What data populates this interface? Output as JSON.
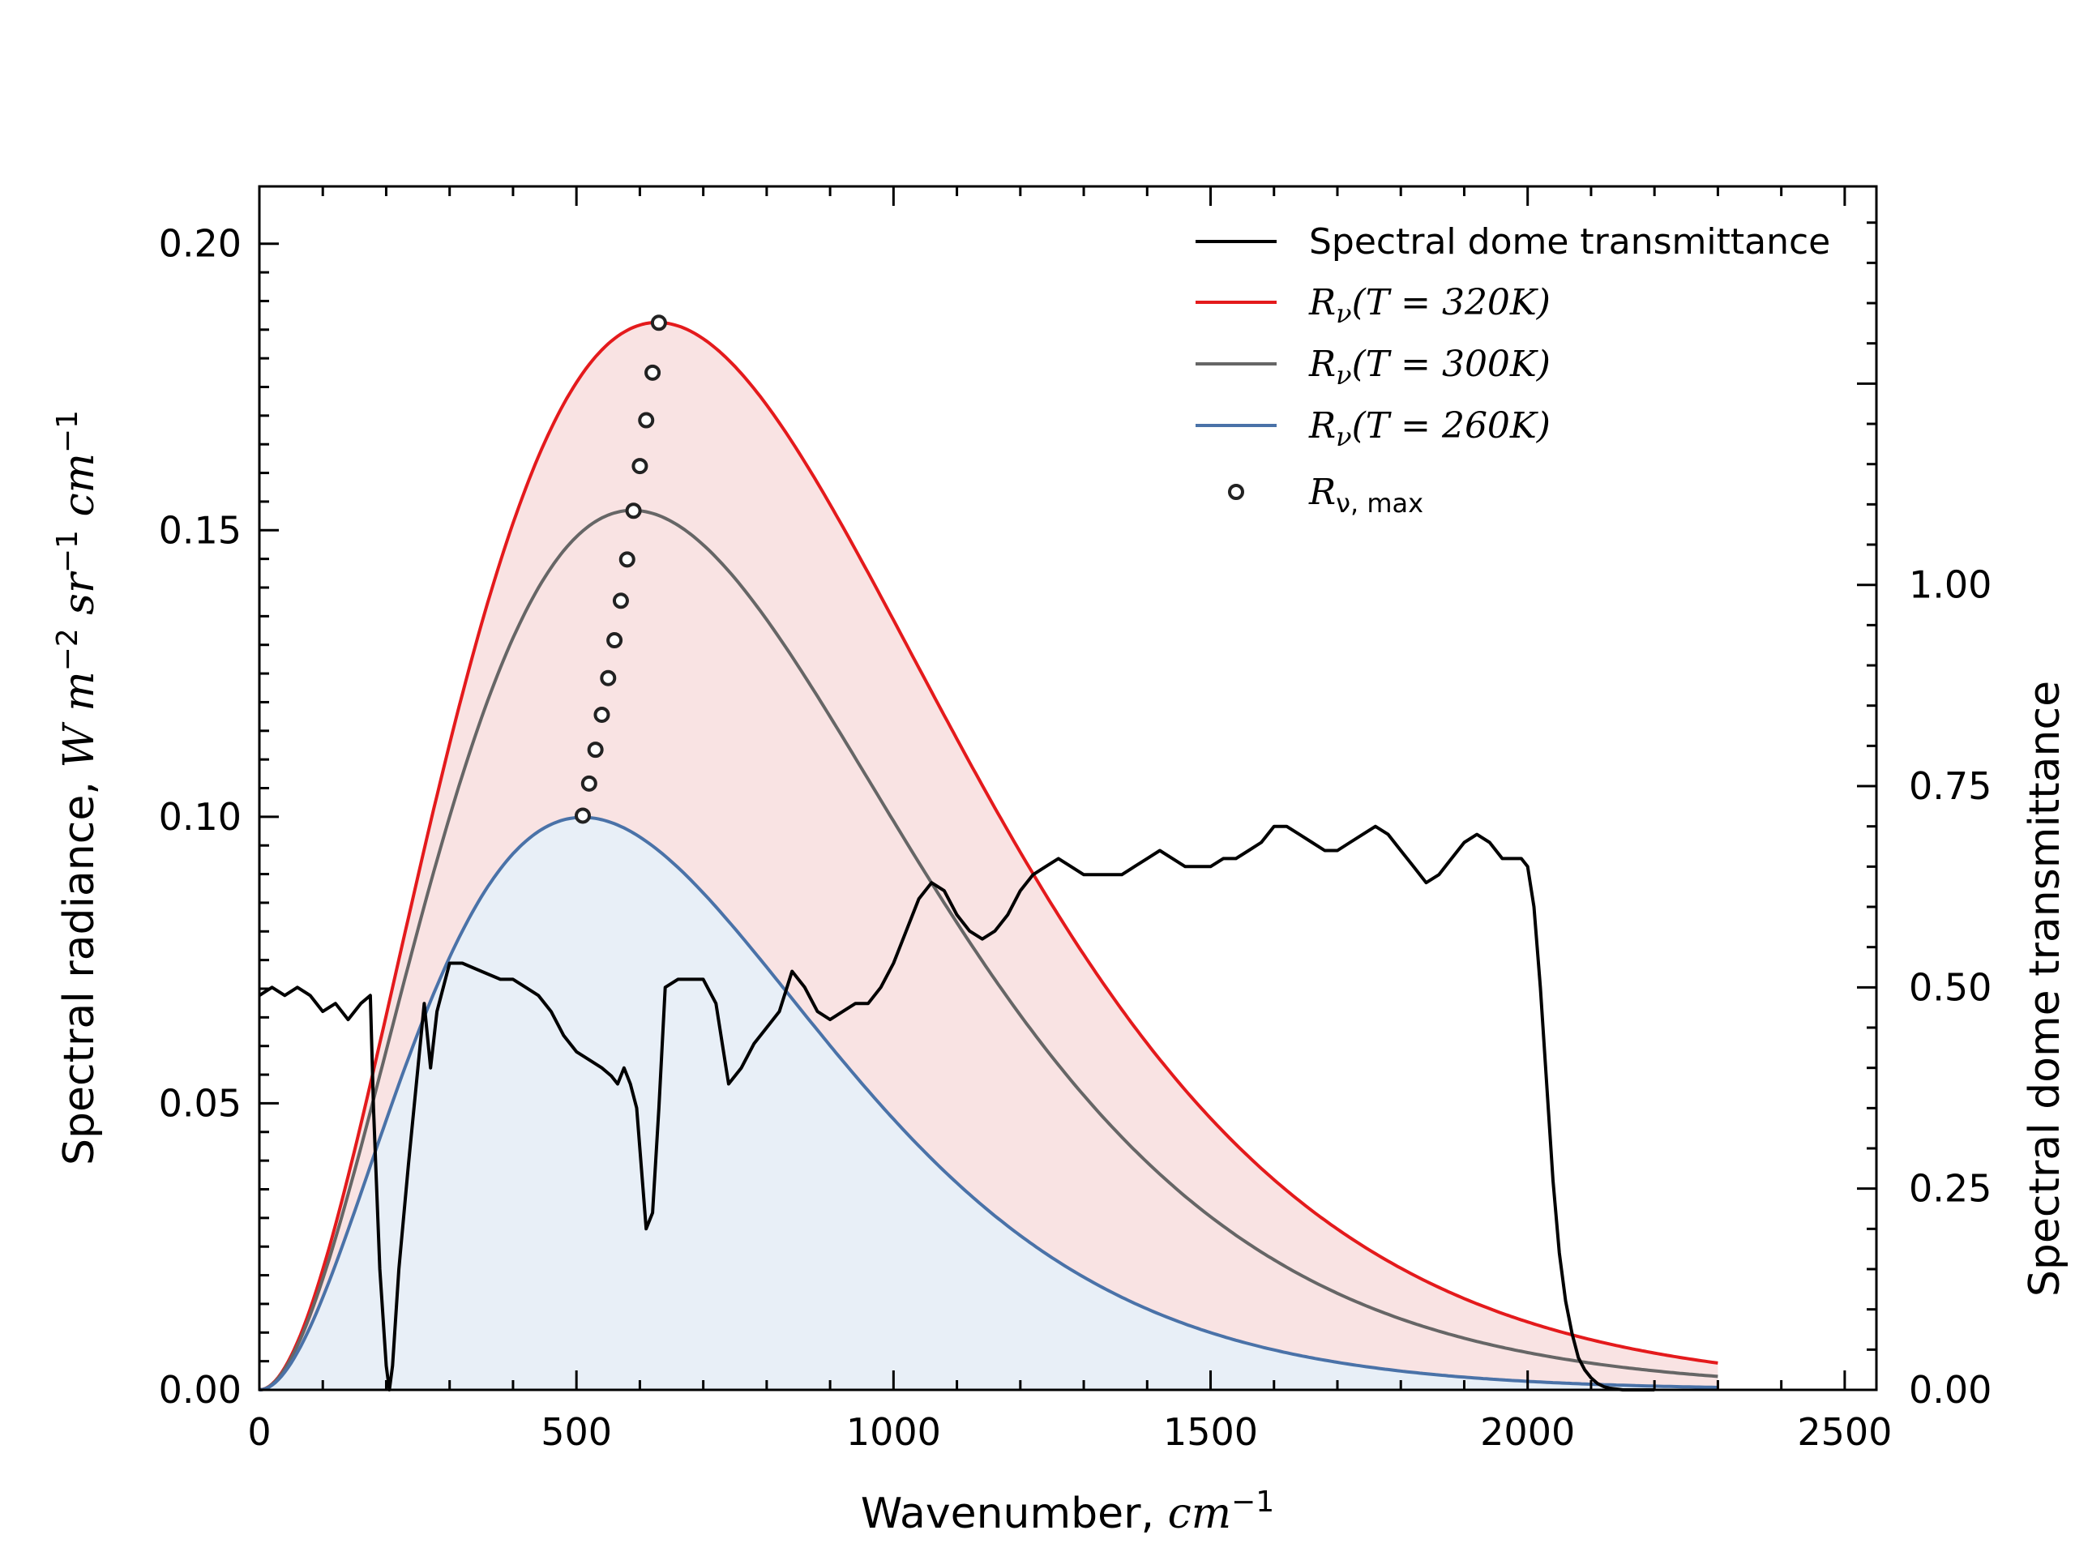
{
  "chart_data": {
    "type": "line",
    "xlabel": {
      "prefix": "Wavenumber, ",
      "unit": "cm",
      "exp": "−1"
    },
    "ylabel": {
      "prefix": "Spectral radiance, ",
      "W": "W",
      "m": "m",
      "m_exp": "−2",
      "sr": "sr",
      "sr_exp": "−1",
      "cm": "cm",
      "cm_exp": "−1"
    },
    "y2label": "Spectral dome transmittance",
    "xlim": [
      0,
      2550
    ],
    "ylim": [
      0,
      0.21
    ],
    "y2lim": [
      0,
      1.495
    ],
    "xticks": [
      0,
      500,
      1000,
      1500,
      2000,
      2500
    ],
    "xtick_labels": [
      "0",
      "500",
      "1000",
      "1500",
      "2000",
      "2500"
    ],
    "yticks": [
      0.0,
      0.05,
      0.1,
      0.15,
      0.2
    ],
    "ytick_labels": [
      "0.00",
      "0.05",
      "0.10",
      "0.15",
      "0.20"
    ],
    "y2ticks": [
      0.0,
      0.25,
      0.5,
      0.75,
      1.0
    ],
    "y2tick_labels": [
      "0.00",
      "0.25",
      "0.50",
      "0.75",
      "1.00"
    ],
    "legend_position": "top-right",
    "legend": [
      {
        "key": "transmittance",
        "label": "Spectral dome transmittance",
        "color": "#000000"
      },
      {
        "key": "r320",
        "label_prefix": "R",
        "label_sub": "ν",
        "label_rest": "(T = 320K)",
        "color": "#e41a1c"
      },
      {
        "key": "r300",
        "label_prefix": "R",
        "label_sub": "ν",
        "label_rest": "(T = 300K)",
        "color": "#666666"
      },
      {
        "key": "r260",
        "label_prefix": "R",
        "label_sub": "ν",
        "label_rest": "(T = 260K)",
        "color": "#4a72a8"
      },
      {
        "key": "rmax",
        "label_prefix": "R",
        "label_sub": "ν, max",
        "label_rest": "",
        "color": "#000000"
      }
    ],
    "planck_series": [
      {
        "key": "r320",
        "temperature_K": 320,
        "color": "#e41a1c",
        "fill": "#f9e3e3",
        "x_range": [
          0,
          2300
        ]
      },
      {
        "key": "r300",
        "temperature_K": 300,
        "color": "#666666",
        "fill": null,
        "x_range": [
          0,
          2300
        ]
      },
      {
        "key": "r260",
        "temperature_K": 260,
        "color": "#4a72a8",
        "fill": "#e8eff7",
        "x_range": [
          0,
          2300
        ]
      }
    ],
    "rmax_points": [
      {
        "x": 510,
        "y": 0.1002
      },
      {
        "x": 520,
        "y": 0.1058
      },
      {
        "x": 530,
        "y": 0.1117
      },
      {
        "x": 540,
        "y": 0.1178
      },
      {
        "x": 550,
        "y": 0.1242
      },
      {
        "x": 560,
        "y": 0.1308
      },
      {
        "x": 570,
        "y": 0.1377
      },
      {
        "x": 580,
        "y": 0.1449
      },
      {
        "x": 590,
        "y": 0.1534
      },
      {
        "x": 600,
        "y": 0.1612
      },
      {
        "x": 610,
        "y": 0.1692
      },
      {
        "x": 620,
        "y": 0.1775
      },
      {
        "x": 630,
        "y": 0.1862
      }
    ],
    "transmittance": {
      "color": "#000000",
      "x": [
        0,
        20,
        40,
        60,
        80,
        100,
        120,
        140,
        160,
        175,
        180,
        190,
        200,
        205,
        210,
        220,
        235,
        250,
        260,
        270,
        280,
        300,
        320,
        350,
        380,
        400,
        420,
        440,
        460,
        480,
        500,
        520,
        540,
        555,
        565,
        575,
        585,
        595,
        605,
        610,
        620,
        630,
        640,
        660,
        680,
        700,
        720,
        730,
        740,
        760,
        780,
        800,
        820,
        840,
        860,
        880,
        900,
        920,
        940,
        960,
        980,
        1000,
        1020,
        1040,
        1060,
        1080,
        1100,
        1120,
        1140,
        1160,
        1180,
        1200,
        1220,
        1240,
        1260,
        1280,
        1300,
        1320,
        1340,
        1360,
        1380,
        1400,
        1420,
        1440,
        1460,
        1480,
        1500,
        1520,
        1540,
        1560,
        1580,
        1600,
        1620,
        1640,
        1660,
        1680,
        1700,
        1720,
        1740,
        1760,
        1780,
        1800,
        1820,
        1840,
        1860,
        1880,
        1900,
        1920,
        1940,
        1960,
        1980,
        1990,
        2000,
        2010,
        2020,
        2030,
        2040,
        2050,
        2060,
        2070,
        2080,
        2090,
        2100,
        2110,
        2120,
        2130,
        2140,
        2150,
        2170,
        2200
      ],
      "y": [
        0.49,
        0.5,
        0.49,
        0.5,
        0.49,
        0.47,
        0.48,
        0.46,
        0.48,
        0.49,
        0.35,
        0.15,
        0.03,
        0.0,
        0.03,
        0.15,
        0.28,
        0.4,
        0.48,
        0.4,
        0.47,
        0.53,
        0.53,
        0.52,
        0.51,
        0.51,
        0.5,
        0.49,
        0.47,
        0.44,
        0.42,
        0.41,
        0.4,
        0.39,
        0.38,
        0.4,
        0.38,
        0.35,
        0.25,
        0.2,
        0.22,
        0.35,
        0.5,
        0.51,
        0.51,
        0.51,
        0.48,
        0.43,
        0.38,
        0.4,
        0.43,
        0.45,
        0.47,
        0.52,
        0.5,
        0.47,
        0.46,
        0.47,
        0.48,
        0.48,
        0.5,
        0.53,
        0.57,
        0.61,
        0.63,
        0.62,
        0.59,
        0.57,
        0.56,
        0.57,
        0.59,
        0.62,
        0.64,
        0.65,
        0.66,
        0.65,
        0.64,
        0.64,
        0.64,
        0.64,
        0.65,
        0.66,
        0.67,
        0.66,
        0.65,
        0.65,
        0.65,
        0.66,
        0.66,
        0.67,
        0.68,
        0.7,
        0.7,
        0.69,
        0.68,
        0.67,
        0.67,
        0.68,
        0.69,
        0.7,
        0.69,
        0.67,
        0.65,
        0.63,
        0.64,
        0.66,
        0.68,
        0.69,
        0.68,
        0.66,
        0.66,
        0.66,
        0.65,
        0.6,
        0.5,
        0.38,
        0.26,
        0.17,
        0.11,
        0.07,
        0.04,
        0.025,
        0.015,
        0.008,
        0.004,
        0.002,
        0.001,
        0.0,
        0.0,
        0.0
      ]
    }
  }
}
